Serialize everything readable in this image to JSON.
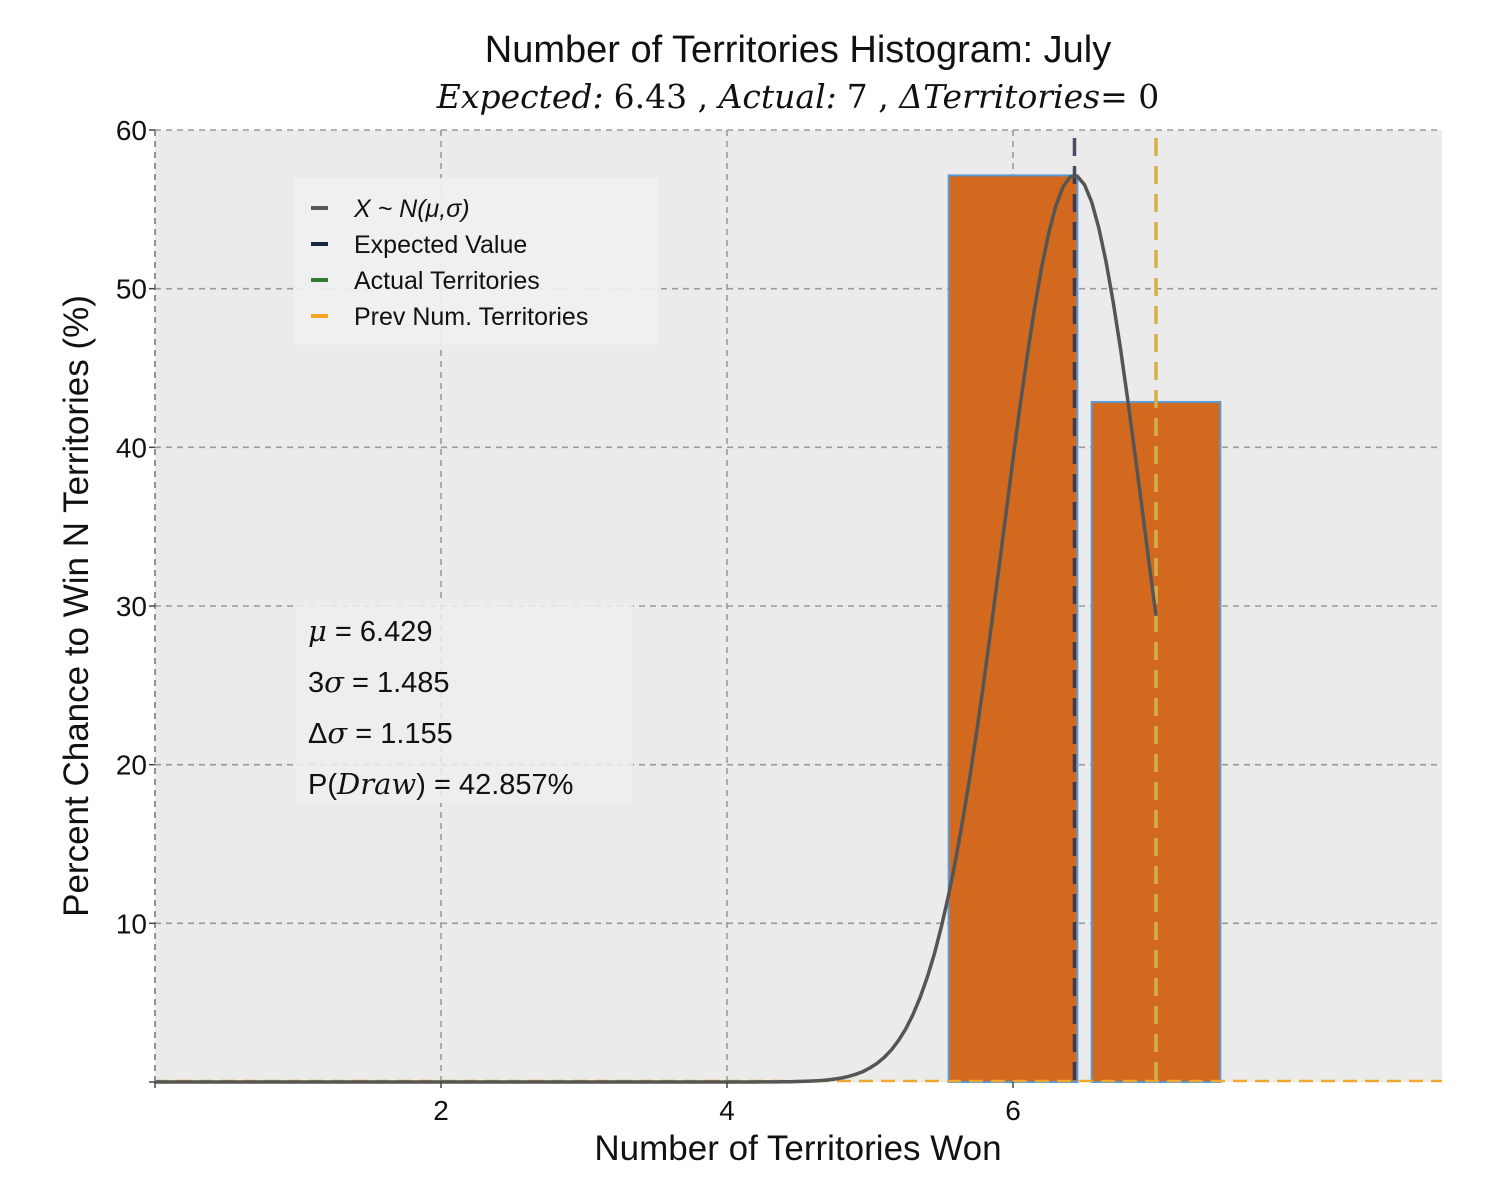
{
  "chart_data": {
    "type": "bar",
    "title": "Number of Territories Histogram: July",
    "subtitle": {
      "expected_label": "Expected:",
      "expected_value": "6.43",
      "actual_label": "Actual:",
      "actual_value": "7",
      "delta_label": "ΔTerritories",
      "delta_value": "0"
    },
    "xlabel": "Number of Territories Won",
    "ylabel": "Percent Chance to Win N Territories (%)",
    "xlim": [
      0,
      9
    ],
    "ylim": [
      0,
      60
    ],
    "xticks": [
      0,
      2,
      4,
      6
    ],
    "xtick_labels": [
      "",
      "2",
      "4",
      "6"
    ],
    "yticks": [
      0,
      10,
      20,
      30,
      40,
      50,
      60
    ],
    "ytick_labels": [
      "",
      "10",
      "20",
      "30",
      "40",
      "50",
      "60"
    ],
    "grid": true,
    "bars": [
      {
        "x": 6,
        "value": 57.14
      },
      {
        "x": 7,
        "value": 42.86
      }
    ],
    "bar_color": "#D2691E",
    "bar_edge_color": "#5b9bd5",
    "normal_curve": {
      "mu": 6.429,
      "sigma": 0.495,
      "x_start": 0,
      "x_end": 7,
      "color": "#555555"
    },
    "expected_value_line": {
      "x": 6.43,
      "color": "#2d3050"
    },
    "actual_line": {
      "x": 7,
      "color": "#2e7d32"
    },
    "prev_line": {
      "x": 7,
      "color": "#d4b04a"
    },
    "prev_baseline_color": "#f0a830",
    "legend": {
      "placement": "top-left",
      "items": [
        {
          "label": "X ~ N(μ,σ)",
          "color": "#555555"
        },
        {
          "label": "Expected Value",
          "color": "#1a2540"
        },
        {
          "label": "Actual Territories",
          "color": "#2e7d32"
        },
        {
          "label": "Prev Num. Territories",
          "color": "#f5a623"
        }
      ]
    },
    "stats": [
      {
        "symbol": "μ",
        "text": " = 6.429"
      },
      {
        "prefix": "3",
        "symbol": "σ",
        "text": " = 1.485"
      },
      {
        "prefix": "Δ",
        "symbol": "σ",
        "text": " = 1.155"
      },
      {
        "prefix": "P(",
        "symbol": "Draw",
        "text": ") = 42.857%"
      }
    ]
  }
}
